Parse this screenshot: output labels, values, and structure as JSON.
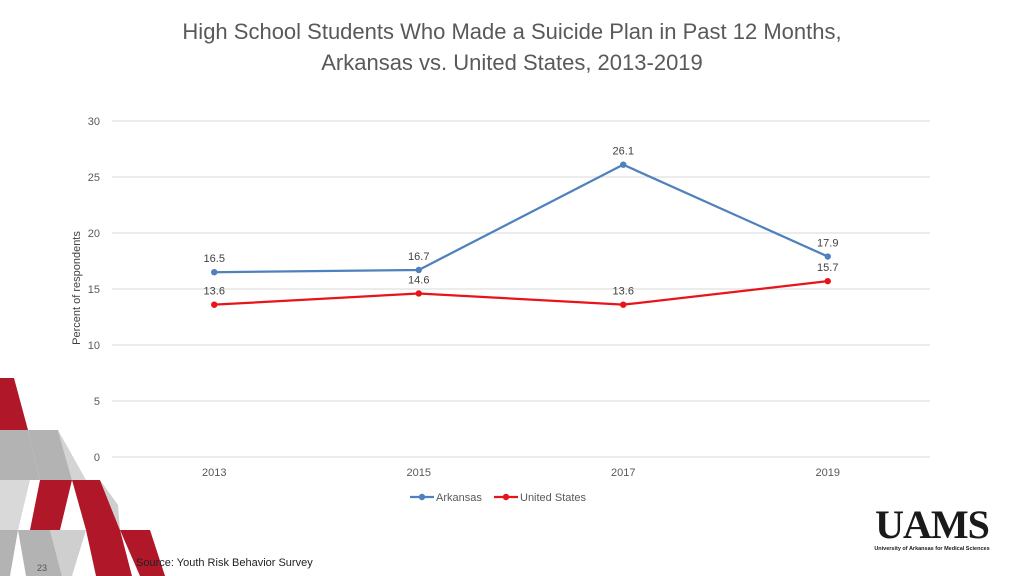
{
  "slide": {
    "title_line1": "High School Students Who Made a Suicide Plan in Past 12 Months,",
    "title_line2": "Arkansas vs. United States, 2013-2019",
    "source": "Source: Youth Risk Behavior Survey",
    "page_number": "23",
    "logo_text": "UAMS",
    "logo_subtitle": "University of Arkansas for Medical Sciences"
  },
  "colors": {
    "arkansas": "#4f81bd",
    "united_states": "#e8141b",
    "gridline": "#d9d9d9",
    "tick_text": "#595959",
    "decor_red": "#b0182a",
    "decor_gray": "#b3b3b3"
  },
  "chart_data": {
    "type": "line",
    "categories": [
      "2013",
      "2015",
      "2017",
      "2019"
    ],
    "series": [
      {
        "name": "Arkansas",
        "values": [
          16.5,
          16.7,
          26.1,
          17.9
        ],
        "labels": [
          "16.5",
          "16.7",
          "26.1",
          "17.9"
        ]
      },
      {
        "name": "United States",
        "values": [
          13.6,
          14.6,
          13.6,
          15.7
        ],
        "labels": [
          "13.6",
          "14.6",
          "13.6",
          "15.7"
        ]
      }
    ],
    "ylabel": "Percent of respondents",
    "ylim": [
      0,
      30
    ],
    "yticks": [
      0,
      5,
      10,
      15,
      20,
      25,
      30
    ],
    "ytick_labels": [
      "0",
      "5",
      "10",
      "15",
      "20",
      "25",
      "30"
    ],
    "grid": true,
    "legend": "bottom-center"
  }
}
